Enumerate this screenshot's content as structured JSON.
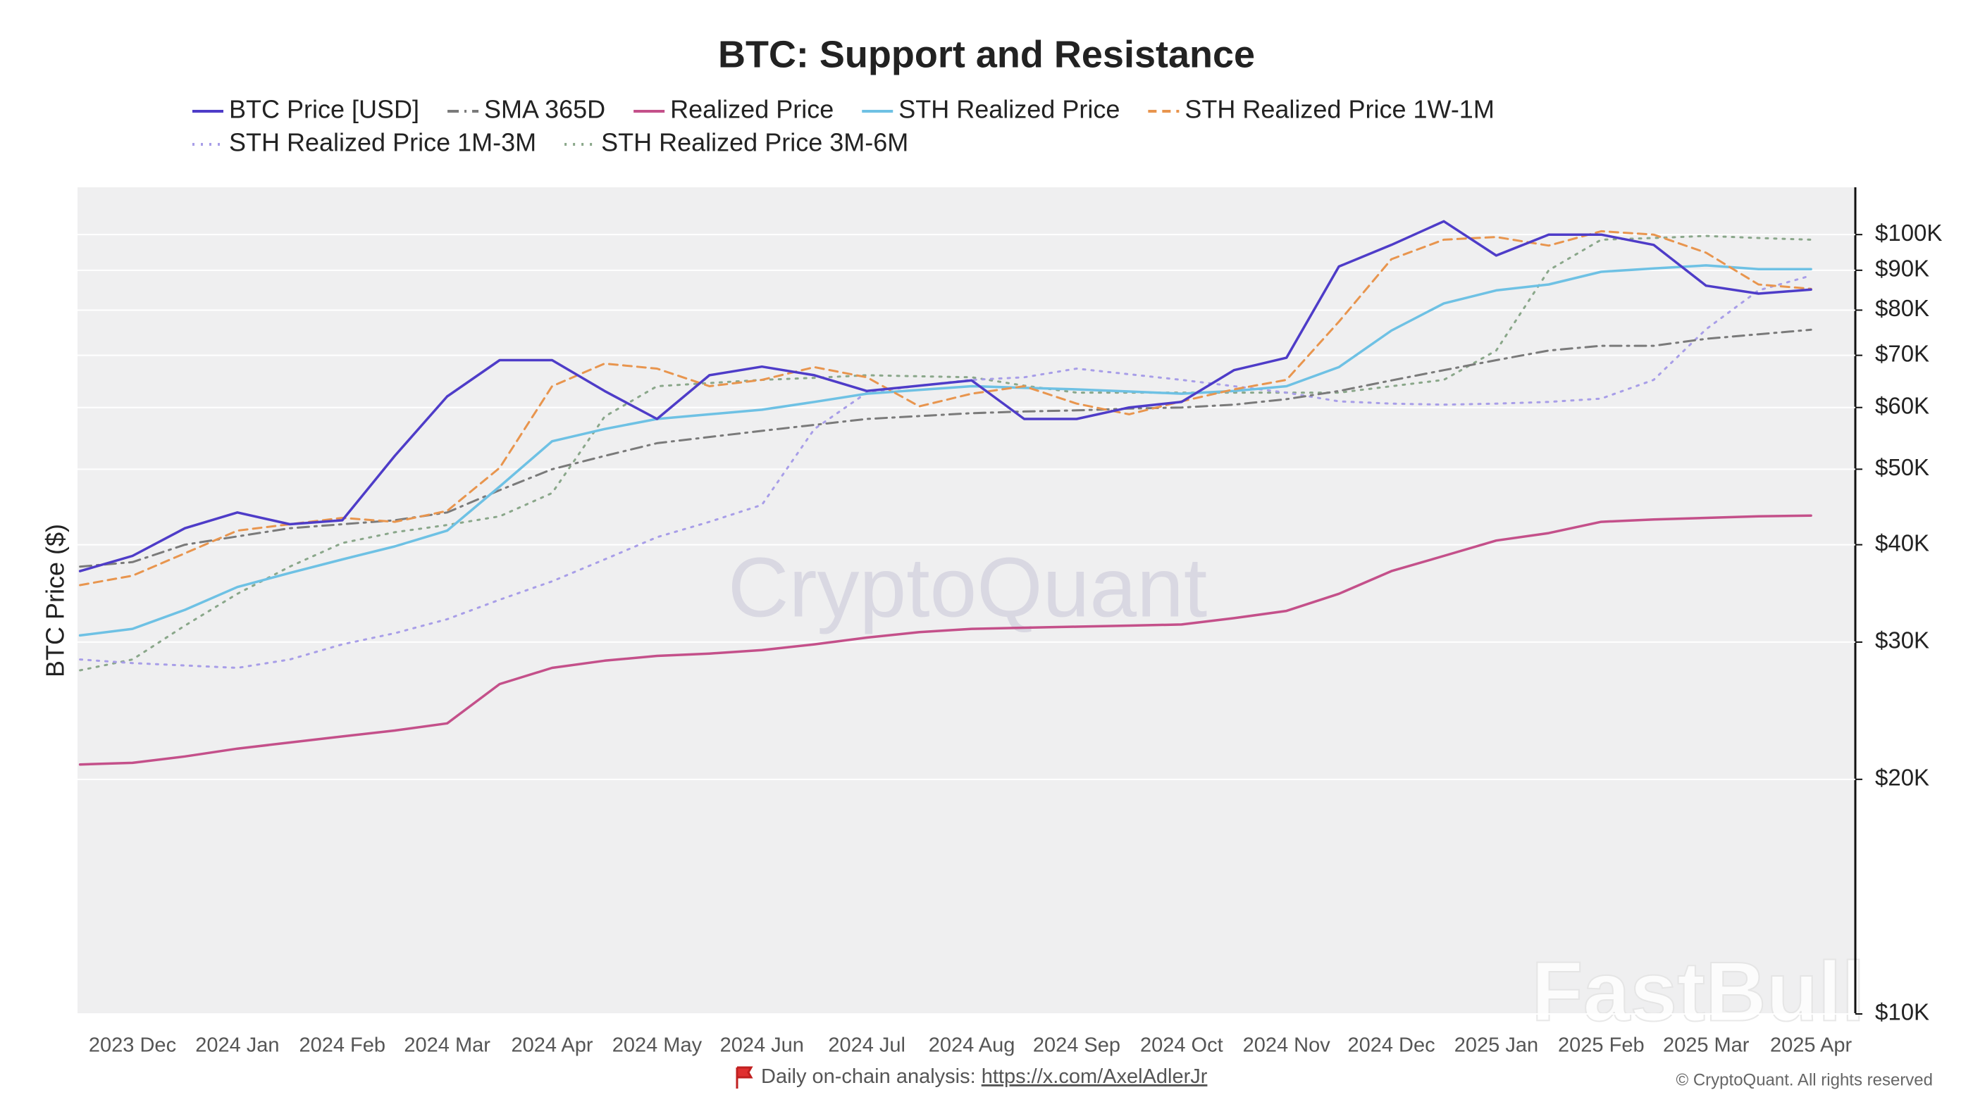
{
  "chart_data": {
    "type": "line",
    "title": "BTC: Support and Resistance",
    "y_label": "BTC Price ($)",
    "categories": [
      null,
      "2023 Dec",
      null,
      "2024 Jan",
      null,
      "2024 Feb",
      null,
      "2024 Mar",
      null,
      "2024 Apr",
      null,
      "2024 May",
      null,
      "2024 Jun",
      null,
      "2024 Jul",
      null,
      "2024 Aug",
      null,
      "2024 Sep",
      null,
      "2024 Oct",
      null,
      "2024 Nov",
      null,
      "2024 Dec",
      null,
      "2025 Jan",
      null,
      "2025 Feb",
      null,
      "2025 Mar",
      null,
      "2025 Apr"
    ],
    "series": [
      {
        "name": "BTC Price [USD]",
        "color": "#4e3cc8",
        "dash": "solid",
        "values": [
          37000,
          38700,
          42000,
          44000,
          42500,
          43000,
          52000,
          62000,
          69000,
          69000,
          63000,
          58000,
          66000,
          67700,
          66000,
          63000,
          64000,
          65000,
          58000,
          58000,
          60000,
          61000,
          67000,
          69500,
          91000,
          97000,
          104000,
          94000,
          100000,
          100000,
          97000,
          86000,
          84000,
          85000
        ]
      },
      {
        "name": "SMA 365D",
        "color": "#7a7a7a",
        "dash": "dashdot",
        "values": [
          37500,
          38000,
          40000,
          41000,
          42000,
          42500,
          43000,
          44000,
          47000,
          50000,
          52000,
          54000,
          55000,
          56000,
          57000,
          58000,
          58500,
          59000,
          59300,
          59500,
          59800,
          60000,
          60500,
          61500,
          63000,
          65000,
          67000,
          69000,
          71000,
          72000,
          72000,
          73500,
          74500,
          75500
        ]
      },
      {
        "name": "Realized Price",
        "color": "#c4508a",
        "dash": "solid",
        "values": [
          20900,
          21000,
          21400,
          21900,
          22300,
          22700,
          23100,
          23600,
          26500,
          27800,
          28400,
          28800,
          29000,
          29300,
          29800,
          30400,
          30900,
          31200,
          31300,
          31400,
          31500,
          31600,
          32200,
          32900,
          34600,
          37000,
          38700,
          40500,
          41400,
          42800,
          43100,
          43300,
          43500,
          43600
        ]
      },
      {
        "name": "STH Realized Price",
        "color": "#6ec1e4",
        "dash": "solid",
        "values": [
          30600,
          31200,
          33000,
          35300,
          36800,
          38300,
          39800,
          41700,
          47500,
          54300,
          56300,
          58000,
          58800,
          59600,
          61000,
          62500,
          63200,
          63900,
          63600,
          63300,
          62900,
          62500,
          63000,
          63900,
          67600,
          75300,
          81600,
          84800,
          86300,
          89600,
          90500,
          91300,
          90300,
          90300
        ]
      },
      {
        "name": "STH Realized Price 1W-1M",
        "color": "#e8954e",
        "dash": "dashed",
        "values": [
          35500,
          36500,
          39000,
          41700,
          42500,
          43300,
          42800,
          44200,
          50200,
          63900,
          68300,
          67300,
          63900,
          65100,
          67600,
          65600,
          60200,
          62500,
          63900,
          60700,
          58800,
          61100,
          63300,
          65100,
          77300,
          93000,
          98500,
          99300,
          96800,
          101000,
          100000,
          94800,
          86300,
          85200
        ]
      },
      {
        "name": "STH Realized Price 1M-3M",
        "color": "#a89ee8",
        "dash": "dotted",
        "values": [
          28500,
          28200,
          28000,
          27800,
          28500,
          29800,
          30800,
          32100,
          34000,
          35900,
          38300,
          40900,
          42800,
          45000,
          56300,
          62700,
          64000,
          65100,
          65600,
          67300,
          66200,
          65100,
          63900,
          62700,
          61100,
          60700,
          60500,
          60700,
          61000,
          61600,
          65100,
          75600,
          84800,
          88600
        ]
      },
      {
        "name": "STH Realized Price 3M-6M",
        "color": "#8aa78a",
        "dash": "dotted",
        "values": [
          27600,
          28500,
          31500,
          34600,
          37500,
          40200,
          41500,
          42400,
          43500,
          46600,
          58400,
          63900,
          64500,
          65100,
          65500,
          66000,
          65800,
          65600,
          64000,
          62700,
          62700,
          62700,
          62700,
          62700,
          62700,
          63900,
          65100,
          71000,
          90000,
          98500,
          99000,
          99600,
          99000,
          98500
        ]
      }
    ],
    "ylim": [
      10000,
      115000
    ],
    "log_y": true,
    "grid": true,
    "legend": "top",
    "yticks": [
      {
        "value": 10000,
        "label": "$10K"
      },
      {
        "value": 20000,
        "label": "$20K"
      },
      {
        "value": 30000,
        "label": "$30K"
      },
      {
        "value": 40000,
        "label": "$40K"
      },
      {
        "value": 50000,
        "label": "$50K"
      },
      {
        "value": 60000,
        "label": "$60K"
      },
      {
        "value": 70000,
        "label": "$70K"
      },
      {
        "value": 80000,
        "label": "$80K"
      },
      {
        "value": 90000,
        "label": "$90K"
      },
      {
        "value": 100000,
        "label": "$100K"
      }
    ],
    "footer": {
      "text": "Daily on-chain analysis:",
      "link": "https://x.com/AxelAdlerJr"
    },
    "copyright": "© CryptoQuant. All rights reserved",
    "watermarks": [
      "CryptoQuant",
      "FastBull"
    ]
  }
}
